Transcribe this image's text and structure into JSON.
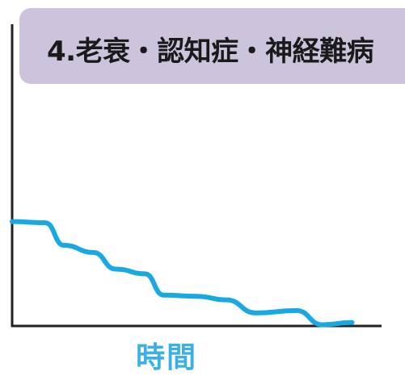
{
  "banner": {
    "title": "4.老衰・認知症・神経難病"
  },
  "colors": {
    "banner_bg": "#cbc4dc",
    "line": "#1aa8e2",
    "axis": "#222222",
    "xlabel": "#3ab0e6"
  },
  "chart_data": {
    "type": "line",
    "title": "4.老衰・認知症・神経難病",
    "xlabel": "時間",
    "ylabel": "",
    "xlim": [
      0,
      100
    ],
    "ylim": [
      0,
      100
    ],
    "grid": false,
    "series": [
      {
        "values": [
          {
            "x": 0,
            "y": 44
          },
          {
            "x": 9,
            "y": 43.5
          },
          {
            "x": 14,
            "y": 34
          },
          {
            "x": 22,
            "y": 31
          },
          {
            "x": 28,
            "y": 24
          },
          {
            "x": 36,
            "y": 22
          },
          {
            "x": 41,
            "y": 13
          },
          {
            "x": 50,
            "y": 12.5
          },
          {
            "x": 58,
            "y": 11
          },
          {
            "x": 66,
            "y": 5.5
          },
          {
            "x": 77,
            "y": 6.5
          },
          {
            "x": 84,
            "y": 0.5
          },
          {
            "x": 92,
            "y": 1.5
          }
        ]
      }
    ]
  }
}
